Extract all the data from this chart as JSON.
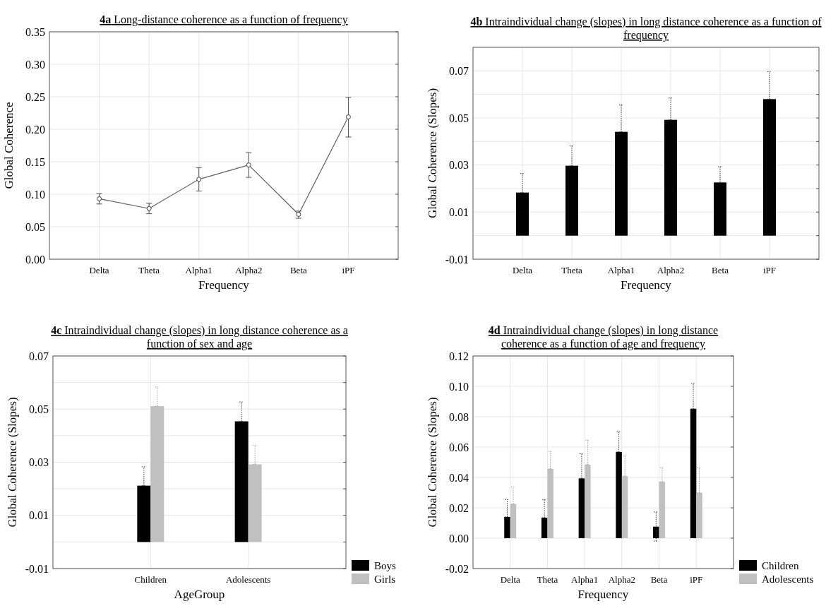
{
  "chart_data": [
    {
      "type": "line",
      "title": "4a Long-distance coherence as a function of frequency",
      "xlabel": "Frequency",
      "ylabel": "Global Coherence",
      "categories": [
        "Delta",
        "Theta",
        "Alpha1",
        "Alpha2",
        "Beta",
        "iPF"
      ],
      "series": [
        {
          "color": "#606060",
          "values": [
            0.093,
            0.078,
            0.123,
            0.145,
            0.069,
            0.219
          ],
          "errors": [
            [
              0.085,
              0.101
            ],
            [
              0.07,
              0.086
            ],
            [
              0.105,
              0.141
            ],
            [
              0.126,
              0.164
            ],
            [
              0.063,
              0.074
            ],
            [
              0.188,
              0.249
            ]
          ]
        }
      ],
      "ylim": [
        0,
        0.35
      ],
      "yticks": [
        {
          "value": 0,
          "label": "0.00"
        },
        0.05,
        {
          "value": 0.1,
          "label": "0.10"
        },
        0.15,
        {
          "value": 0.2,
          "label": "0.20"
        },
        0.25,
        {
          "value": 0.3,
          "label": "0.30"
        },
        0.35
      ],
      "grid": true,
      "marker": "circle",
      "line_style": "solid"
    },
    {
      "type": "bar",
      "title": "4b Intraindividual change (slopes) in long distance coherence as a function of frequency",
      "xlabel": "Frequency",
      "ylabel": "Global Coherence (Slopes)",
      "categories": [
        "Delta",
        "Theta",
        "Alpha1",
        "Alpha2",
        "Beta",
        "iPF"
      ],
      "series": [
        {
          "color": "#000000",
          "values": [
            0.0183,
            0.0297,
            0.0441,
            0.0492,
            0.0226,
            0.058
          ],
          "errors": [
            [
              0.0183,
              0.0264
            ],
            [
              0.0297,
              0.0381
            ],
            [
              0.0441,
              0.0556
            ],
            [
              0.0492,
              0.0585
            ],
            [
              0.0226,
              0.0293
            ],
            [
              0.058,
              0.0697
            ]
          ]
        }
      ],
      "ylim": [
        -0.01,
        0.08
      ],
      "yticks": [
        -0.01,
        {
          "value": 0,
          "label": null
        },
        0.01,
        {
          "value": 0.02,
          "label": null
        },
        0.03,
        {
          "value": 0.04,
          "label": null
        },
        0.05,
        {
          "value": 0.06,
          "label": null
        },
        0.07
      ],
      "grid": true
    },
    {
      "type": "bar",
      "title": "4c Intraindividual change (slopes) in long distance coherence as a function of sex and age",
      "xlabel": "AgeGroup",
      "ylabel": "Global Coherence (Slopes)",
      "categories": [
        "Children",
        "Adolescents"
      ],
      "series": [
        {
          "name": "Boys",
          "color": "#000000",
          "values": [
            0.0212,
            0.0454
          ],
          "errors": [
            [
              0.0212,
              0.0283
            ],
            [
              0.0454,
              0.0527
            ]
          ]
        },
        {
          "name": "Girls",
          "color": "#c0c0c0",
          "values": [
            0.0511,
            0.0292
          ],
          "errors": [
            [
              0.0511,
              0.0583
            ],
            [
              0.0292,
              0.0364
            ]
          ]
        }
      ],
      "ylim": [
        -0.01,
        0.07
      ],
      "yticks": [
        -0.01,
        {
          "value": 0,
          "label": null
        },
        0.01,
        {
          "value": 0.02,
          "label": null
        },
        0.03,
        {
          "value": 0.04,
          "label": null
        },
        0.05,
        {
          "value": 0.06,
          "label": null
        },
        0.07
      ],
      "grid": true,
      "legend": "bottom right"
    },
    {
      "type": "bar",
      "title": "4d Intraindividual change (slopes) in long distance coherence as a function of age  and frequency",
      "xlabel": "Frequency",
      "ylabel": "Global Coherence (Slopes)",
      "categories": [
        "Delta",
        "Theta",
        "Alpha1",
        "Alpha2",
        "Beta",
        "iPF"
      ],
      "series": [
        {
          "name": "Children",
          "color": "#000000",
          "values": [
            0.014,
            0.0135,
            0.0394,
            0.0568,
            0.0076,
            0.0852
          ],
          "errors": [
            [
              0.014,
              0.0254
            ],
            [
              0.0135,
              0.0254
            ],
            [
              0.0394,
              0.0556
            ],
            [
              0.0568,
              0.0701
            ],
            [
              -0.0019,
              0.0173
            ],
            [
              0.0852,
              0.1019
            ]
          ]
        },
        {
          "name": "Adolescents",
          "color": "#c0c0c0",
          "values": [
            0.0225,
            0.0456,
            0.0484,
            0.0408,
            0.0371,
            0.0299
          ],
          "errors": [
            [
              0.0225,
              0.0337
            ],
            [
              0.0456,
              0.0572
            ],
            [
              0.0484,
              0.0646
            ],
            [
              0.0408,
              0.0541
            ],
            [
              0.0371,
              0.0465
            ],
            [
              0.0299,
              0.0463
            ]
          ]
        }
      ],
      "ylim": [
        -0.02,
        0.12
      ],
      "yticks": [
        -0.02,
        {
          "value": 0,
          "label": "0.00"
        },
        0.02,
        0.04,
        0.06,
        0.08,
        {
          "value": 0.1,
          "label": "0.10"
        },
        0.12
      ],
      "grid": true,
      "legend": "bottom right"
    }
  ]
}
